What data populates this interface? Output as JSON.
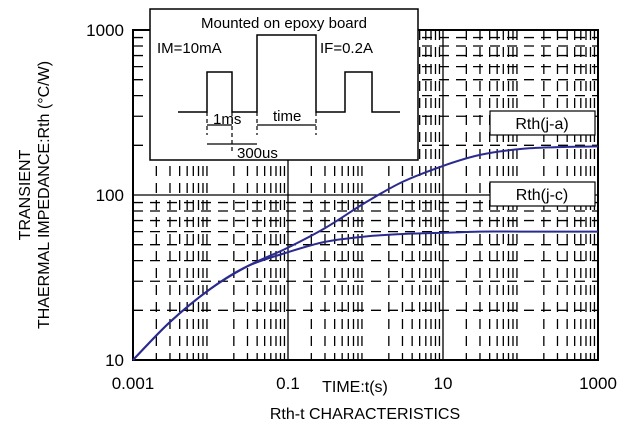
{
  "chart_data": {
    "type": "line",
    "title": "Rth-t CHARACTERISTICS",
    "xlabel": "TIME:t(s)",
    "ylabel_line1": "TRANSIENT",
    "ylabel_line2": "THAERMAL IMPEDANCE:Rth (°C/W)",
    "x_scale": "log",
    "y_scale": "log",
    "xlim": [
      0.001,
      1000
    ],
    "ylim": [
      10,
      1000
    ],
    "x_ticks": [
      0.001,
      0.1,
      10,
      1000
    ],
    "x_tick_labels": [
      "0.001",
      "0.1",
      "10",
      "1000"
    ],
    "y_ticks": [
      10,
      100,
      1000
    ],
    "y_tick_labels": [
      "10",
      "100",
      "1000"
    ],
    "grid": true,
    "series": [
      {
        "name": "Rth(j-a)",
        "color": "#2b2b8f",
        "x": [
          0.001,
          0.003,
          0.01,
          0.03,
          0.1,
          0.3,
          1,
          3,
          10,
          30,
          100,
          300,
          1000
        ],
        "y": [
          10,
          17,
          27,
          37,
          48,
          63,
          90,
          120,
          150,
          175,
          190,
          195,
          197
        ]
      },
      {
        "name": "Rth(j-c)",
        "color": "#2b2b8f",
        "x": [
          0.001,
          0.003,
          0.01,
          0.03,
          0.1,
          0.3,
          1,
          3,
          10,
          30,
          100,
          300,
          1000
        ],
        "y": [
          10,
          17,
          27,
          37,
          45,
          52,
          56,
          58,
          59,
          60,
          60,
          60,
          60
        ]
      }
    ],
    "inset": {
      "title": "Mounted on epoxy board",
      "im_label": "IM=10mA",
      "if_label": "IF=0.2A",
      "pulse_label": "1ms",
      "time_label": "time",
      "period_label": "300us"
    }
  }
}
